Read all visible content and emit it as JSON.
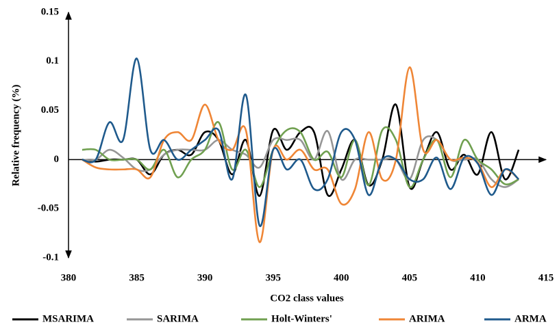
{
  "chart_data": {
    "type": "line",
    "y_label": "Relative frequency (%)",
    "x_label": "CO2 class values",
    "xlim": [
      380,
      415
    ],
    "xticks": [
      380,
      385,
      390,
      395,
      400,
      405,
      410,
      415
    ],
    "ylim": [
      -0.1,
      0.15
    ],
    "yticks": [
      -0.1,
      -0.05,
      0,
      0.05,
      0.1,
      0.15
    ],
    "x": [
      381,
      382,
      383,
      384,
      385,
      386,
      387,
      388,
      389,
      390,
      391,
      392,
      393,
      394,
      395,
      396,
      397,
      398,
      399,
      400,
      401,
      402,
      403,
      404,
      405,
      406,
      407,
      408,
      409,
      410,
      411,
      412,
      413
    ],
    "series": [
      {
        "name": "MSARIMA",
        "color": "#000000",
        "values": [
          0,
          -0.002,
          0,
          0,
          0,
          -0.015,
          0.005,
          0.01,
          0.005,
          0.028,
          0.02,
          -0.015,
          0.02,
          -0.037,
          0.03,
          0.01,
          0.028,
          0.028,
          -0.036,
          -0.01,
          0.02,
          -0.026,
          0,
          0.056,
          -0.028,
          0,
          0.028,
          -0.01,
          0.005,
          -0.015,
          0.028,
          -0.02,
          0.01
        ]
      },
      {
        "name": "SARIMA",
        "color": "#969696",
        "values": [
          0,
          0,
          0.01,
          0.002,
          -0.01,
          -0.01,
          0.005,
          0.01,
          0.01,
          0.01,
          0.02,
          0.01,
          0.005,
          -0.008,
          0.02,
          0.02,
          0.02,
          0,
          0.029,
          -0.02,
          0,
          0,
          0,
          0,
          -0.02,
          0.02,
          0.02,
          0,
          0,
          0,
          -0.02,
          -0.028,
          -0.02
        ]
      },
      {
        "name": "Holt-Winters'",
        "color": "#70a050",
        "values": [
          0.01,
          0.01,
          0,
          0,
          0,
          -0.01,
          0.01,
          -0.018,
          0,
          0.01,
          0.038,
          -0.01,
          0.01,
          -0.028,
          0.01,
          0.03,
          0.028,
          0,
          0.008,
          -0.018,
          0.02,
          -0.026,
          0.03,
          0.02,
          -0.028,
          0,
          0.02,
          -0.018,
          0.02,
          0,
          -0.01,
          -0.025,
          -0.02
        ]
      },
      {
        "name": "ARIMA",
        "color": "#ef8636",
        "values": [
          0,
          -0.008,
          -0.01,
          -0.01,
          -0.01,
          -0.018,
          0.02,
          0.028,
          0.02,
          0.056,
          0.02,
          0.01,
          0.03,
          -0.084,
          0.01,
          0,
          0.01,
          -0.01,
          -0.01,
          -0.045,
          -0.03,
          0.028,
          -0.02,
          0,
          0.094,
          0.01,
          0.02,
          0,
          0.002,
          -0.003,
          -0.028,
          -0.01,
          -0.02
        ]
      },
      {
        "name": "ARMA",
        "color": "#1f5a8c",
        "values": [
          0,
          0,
          0.038,
          0.02,
          0.103,
          0.01,
          0.02,
          0,
          0.01,
          0.02,
          0.03,
          -0.02,
          0.066,
          -0.067,
          0.01,
          -0.01,
          0,
          -0.03,
          -0.02,
          0.028,
          0.02,
          -0.036,
          0,
          0,
          -0.02,
          -0.02,
          0.002,
          -0.03,
          0.002,
          -0.004,
          -0.036,
          -0.01,
          -0.02
        ]
      }
    ]
  }
}
